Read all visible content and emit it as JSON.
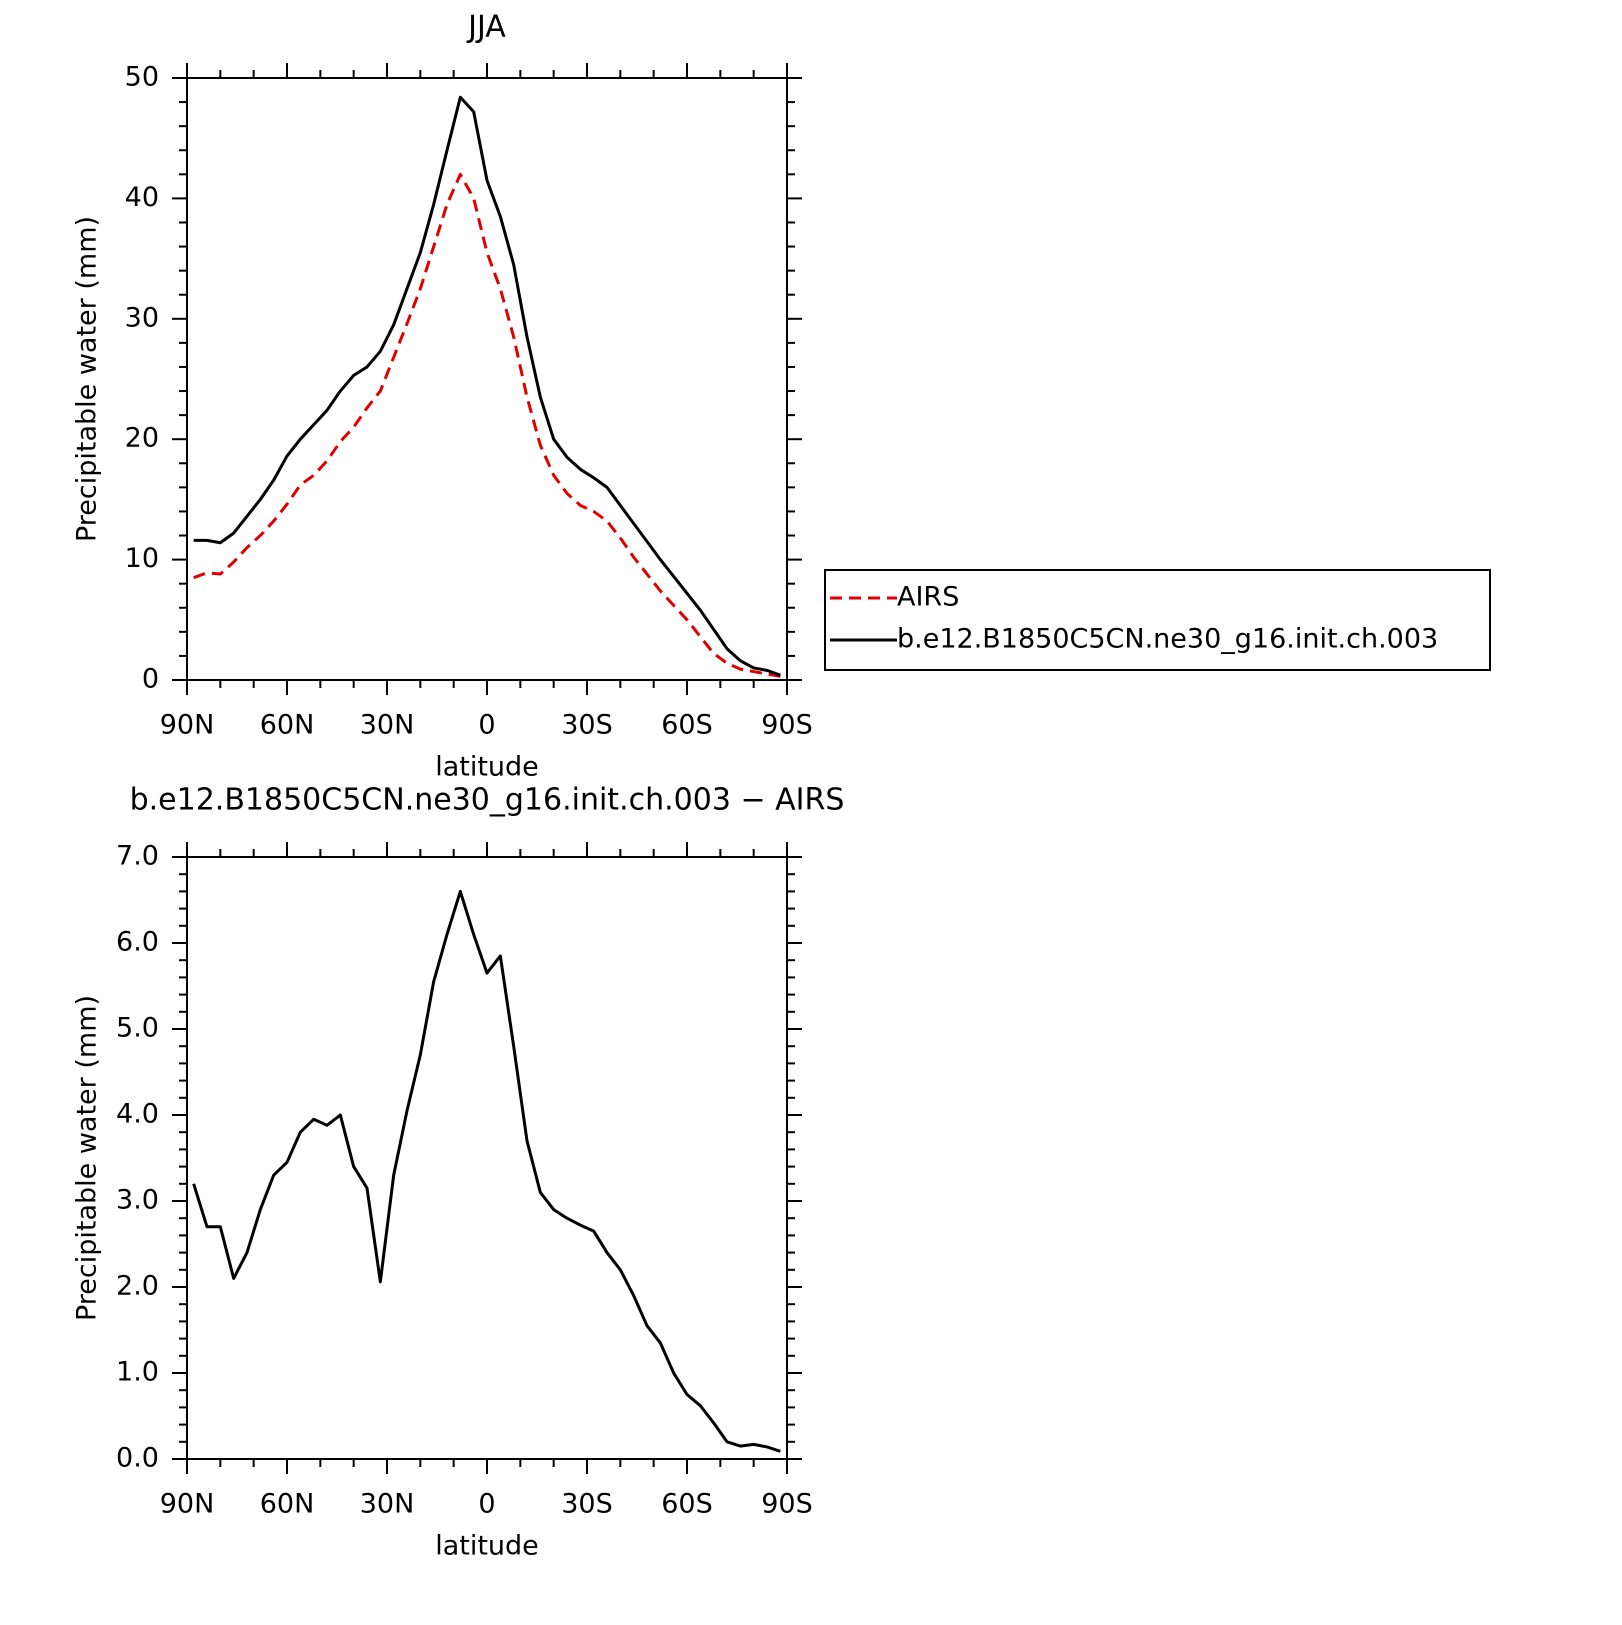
{
  "chart_data": [
    {
      "type": "line",
      "title": "JJA",
      "xlabel": "latitude",
      "ylabel": "Precipitable water (mm)",
      "xlim": [
        90,
        -90
      ],
      "xticks": [
        {
          "value": 90,
          "label": "90N"
        },
        {
          "value": 60,
          "label": "60N"
        },
        {
          "value": 30,
          "label": "30N"
        },
        0,
        {
          "value": -30,
          "label": "30S"
        },
        {
          "value": -60,
          "label": "60S"
        },
        {
          "value": -90,
          "label": "90S"
        }
      ],
      "xminorticks": [
        80,
        70,
        50,
        40,
        20,
        10,
        -10,
        -20,
        -40,
        -50,
        -70,
        -80
      ],
      "ylim": [
        0,
        50
      ],
      "yticks": [
        0,
        10,
        20,
        30,
        40,
        50
      ],
      "yminorticks": [
        2,
        4,
        6,
        8,
        12,
        14,
        16,
        18,
        22,
        24,
        26,
        28,
        32,
        34,
        36,
        38,
        42,
        44,
        46,
        48
      ],
      "legend": "right",
      "x": [
        88,
        84,
        80,
        76,
        72,
        68,
        64,
        60,
        56,
        52,
        48,
        44,
        40,
        36,
        32,
        28,
        24,
        20,
        16,
        12,
        8,
        4,
        0,
        -4,
        -8,
        -12,
        -16,
        -20,
        -24,
        -28,
        -32,
        -36,
        -40,
        -44,
        -48,
        -52,
        -56,
        -60,
        -64,
        -68,
        -72,
        -76,
        -80,
        -84,
        -88
      ],
      "series": [
        {
          "name": "AIRS",
          "color": "#e00000",
          "style": "dashed",
          "values": [
            8.5,
            8.9,
            8.8,
            9.8,
            11.0,
            12.0,
            13.2,
            14.6,
            16.2,
            17.0,
            18.2,
            19.8,
            21.0,
            22.6,
            24.0,
            26.8,
            29.6,
            32.5,
            36.0,
            39.5,
            42.0,
            40.0,
            35.5,
            32.5,
            28.5,
            23.5,
            19.5,
            17.0,
            15.5,
            14.5,
            14.0,
            13.2,
            11.8,
            10.2,
            8.8,
            7.4,
            6.2,
            5.0,
            3.6,
            2.2,
            1.4,
            0.9,
            0.7,
            0.5,
            0.3
          ]
        },
        {
          "name": "b.e12.B1850C5CN.ne30_g16.init.ch.003",
          "color": "#000000",
          "style": "solid",
          "values": [
            11.6,
            11.6,
            11.4,
            12.2,
            13.6,
            15.0,
            16.6,
            18.6,
            20.0,
            21.2,
            22.4,
            24.0,
            25.3,
            26.0,
            27.3,
            29.5,
            32.5,
            35.5,
            39.5,
            44.0,
            48.4,
            47.2,
            41.5,
            38.5,
            34.5,
            28.5,
            23.5,
            20.0,
            18.5,
            17.5,
            16.8,
            16.0,
            14.5,
            13.0,
            11.5,
            10.0,
            8.6,
            7.2,
            5.8,
            4.2,
            2.6,
            1.6,
            1.0,
            0.8,
            0.4
          ]
        }
      ]
    },
    {
      "type": "line",
      "title": "b.e12.B1850C5CN.ne30_g16.init.ch.003 − AIRS",
      "xlabel": "latitude",
      "ylabel": "Precipitable water (mm)",
      "xlim": [
        90,
        -90
      ],
      "xticks": [
        {
          "value": 90,
          "label": "90N"
        },
        {
          "value": 60,
          "label": "60N"
        },
        {
          "value": 30,
          "label": "30N"
        },
        0,
        {
          "value": -30,
          "label": "30S"
        },
        {
          "value": -60,
          "label": "60S"
        },
        {
          "value": -90,
          "label": "90S"
        }
      ],
      "xminorticks": [
        80,
        70,
        50,
        40,
        20,
        10,
        -10,
        -20,
        -40,
        -50,
        -70,
        -80
      ],
      "ylim": [
        0,
        7
      ],
      "yticks": [
        {
          "value": 0,
          "label": "0.0"
        },
        {
          "value": 1,
          "label": "1.0"
        },
        {
          "value": 2,
          "label": "2.0"
        },
        {
          "value": 3,
          "label": "3.0"
        },
        {
          "value": 4,
          "label": "4.0"
        },
        {
          "value": 5,
          "label": "5.0"
        },
        {
          "value": 6,
          "label": "6.0"
        },
        {
          "value": 7,
          "label": "7.0"
        }
      ],
      "yminorticks": [
        0.2,
        0.4,
        0.6,
        0.8,
        1.2,
        1.4,
        1.6,
        1.8,
        2.2,
        2.4,
        2.6,
        2.8,
        3.2,
        3.4,
        3.6,
        3.8,
        4.2,
        4.4,
        4.6,
        4.8,
        5.2,
        5.4,
        5.6,
        5.8,
        6.2,
        6.4,
        6.6,
        6.8
      ],
      "x": [
        88,
        84,
        80,
        76,
        72,
        68,
        64,
        60,
        56,
        52,
        48,
        44,
        40,
        36,
        32,
        28,
        24,
        20,
        16,
        12,
        8,
        4,
        0,
        -4,
        -8,
        -12,
        -16,
        -20,
        -24,
        -28,
        -32,
        -36,
        -40,
        -44,
        -48,
        -52,
        -56,
        -60,
        -64,
        -68,
        -72,
        -76,
        -80,
        -84,
        -88
      ],
      "color": "#000000",
      "values": [
        3.2,
        2.7,
        2.7,
        2.1,
        2.4,
        2.9,
        3.3,
        3.45,
        3.8,
        3.95,
        3.88,
        4.0,
        3.4,
        3.15,
        2.06,
        3.3,
        4.05,
        4.7,
        5.55,
        6.1,
        6.6,
        6.1,
        5.65,
        5.85,
        4.8,
        3.7,
        3.1,
        2.9,
        2.8,
        2.72,
        2.65,
        2.4,
        2.2,
        1.9,
        1.55,
        1.35,
        1.0,
        0.75,
        0.62,
        0.42,
        0.2,
        0.15,
        0.17,
        0.14,
        0.09
      ]
    }
  ]
}
